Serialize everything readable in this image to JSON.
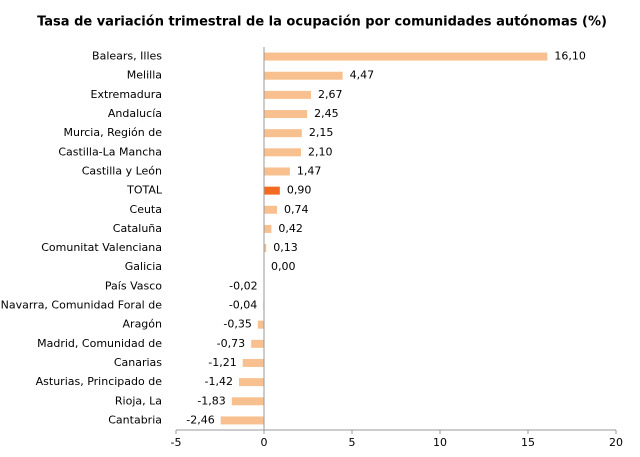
{
  "chart_data": {
    "type": "bar",
    "orientation": "horizontal",
    "title": "Tasa de variación trimestral de la ocupación por comunidades autónomas (%)",
    "categories": [
      "Balears, Illes",
      "Melilla",
      "Extremadura",
      "Andalucía",
      "Murcia, Región de",
      "Castilla-La Mancha",
      "Castilla y León",
      "TOTAL",
      "Ceuta",
      "Cataluña",
      "Comunitat Valenciana",
      "Galicia",
      "País Vasco",
      "Navarra, Comunidad Foral de",
      "Aragón",
      "Madrid, Comunidad de",
      "Canarias",
      "Asturias, Principado de",
      "Rioja, La",
      "Cantabria"
    ],
    "values": [
      16.1,
      4.47,
      2.67,
      2.45,
      2.15,
      2.1,
      1.47,
      0.9,
      0.74,
      0.42,
      0.13,
      0.0,
      -0.02,
      -0.04,
      -0.35,
      -0.73,
      -1.21,
      -1.42,
      -1.83,
      -2.46
    ],
    "value_labels": [
      "16,10",
      "4,47",
      "2,67",
      "2,45",
      "2,15",
      "2,10",
      "1,47",
      "0,90",
      "0,74",
      "0,42",
      "0,13",
      "0,00",
      "-0,02",
      "-0,04",
      "-0,35",
      "-0,73",
      "-1,21",
      "-1,42",
      "-1,83",
      "-2,46"
    ],
    "colors": [
      "#f9c08f",
      "#f9c08f",
      "#f9c08f",
      "#f9c08f",
      "#f9c08f",
      "#f9c08f",
      "#f9c08f",
      "#f26b21",
      "#f9c08f",
      "#f9c08f",
      "#f9c08f",
      "#f9c08f",
      "#f9c08f",
      "#f9c08f",
      "#f9c08f",
      "#f9c08f",
      "#f9c08f",
      "#f9c08f",
      "#f9c08f",
      "#f9c08f"
    ],
    "xlim": [
      -5,
      20
    ],
    "xticks": [
      -5,
      0,
      5,
      10,
      15,
      20
    ],
    "grid": false
  }
}
